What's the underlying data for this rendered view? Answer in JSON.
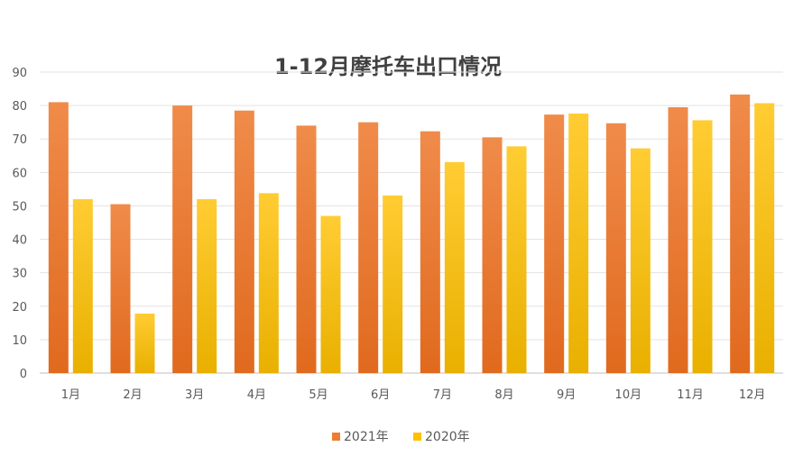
{
  "chart_data": {
    "type": "bar",
    "title": "1-12月摩托车出口情况",
    "xlabel": "",
    "ylabel": "",
    "categories": [
      "1月",
      "2月",
      "3月",
      "4月",
      "5月",
      "6月",
      "7月",
      "8月",
      "9月",
      "10月",
      "11月",
      "12月"
    ],
    "series": [
      {
        "name": "2021年",
        "values": [
          81,
          50.5,
          80,
          78.5,
          74,
          75,
          72.3,
          70.5,
          77.3,
          74.7,
          79.5,
          83.3
        ]
      },
      {
        "name": "2020年",
        "values": [
          52,
          17.8,
          52,
          53.8,
          47,
          53.1,
          63.1,
          67.8,
          77.6,
          67.2,
          75.6,
          80.7
        ]
      }
    ],
    "ylim": [
      0,
      90
    ],
    "yticks": [
      0,
      10,
      20,
      30,
      40,
      50,
      60,
      70,
      80,
      90
    ],
    "grid": true,
    "legend_position": "bottom",
    "colors": {
      "series_2021": "#ED7D31",
      "series_2020": "#FFC000"
    }
  }
}
